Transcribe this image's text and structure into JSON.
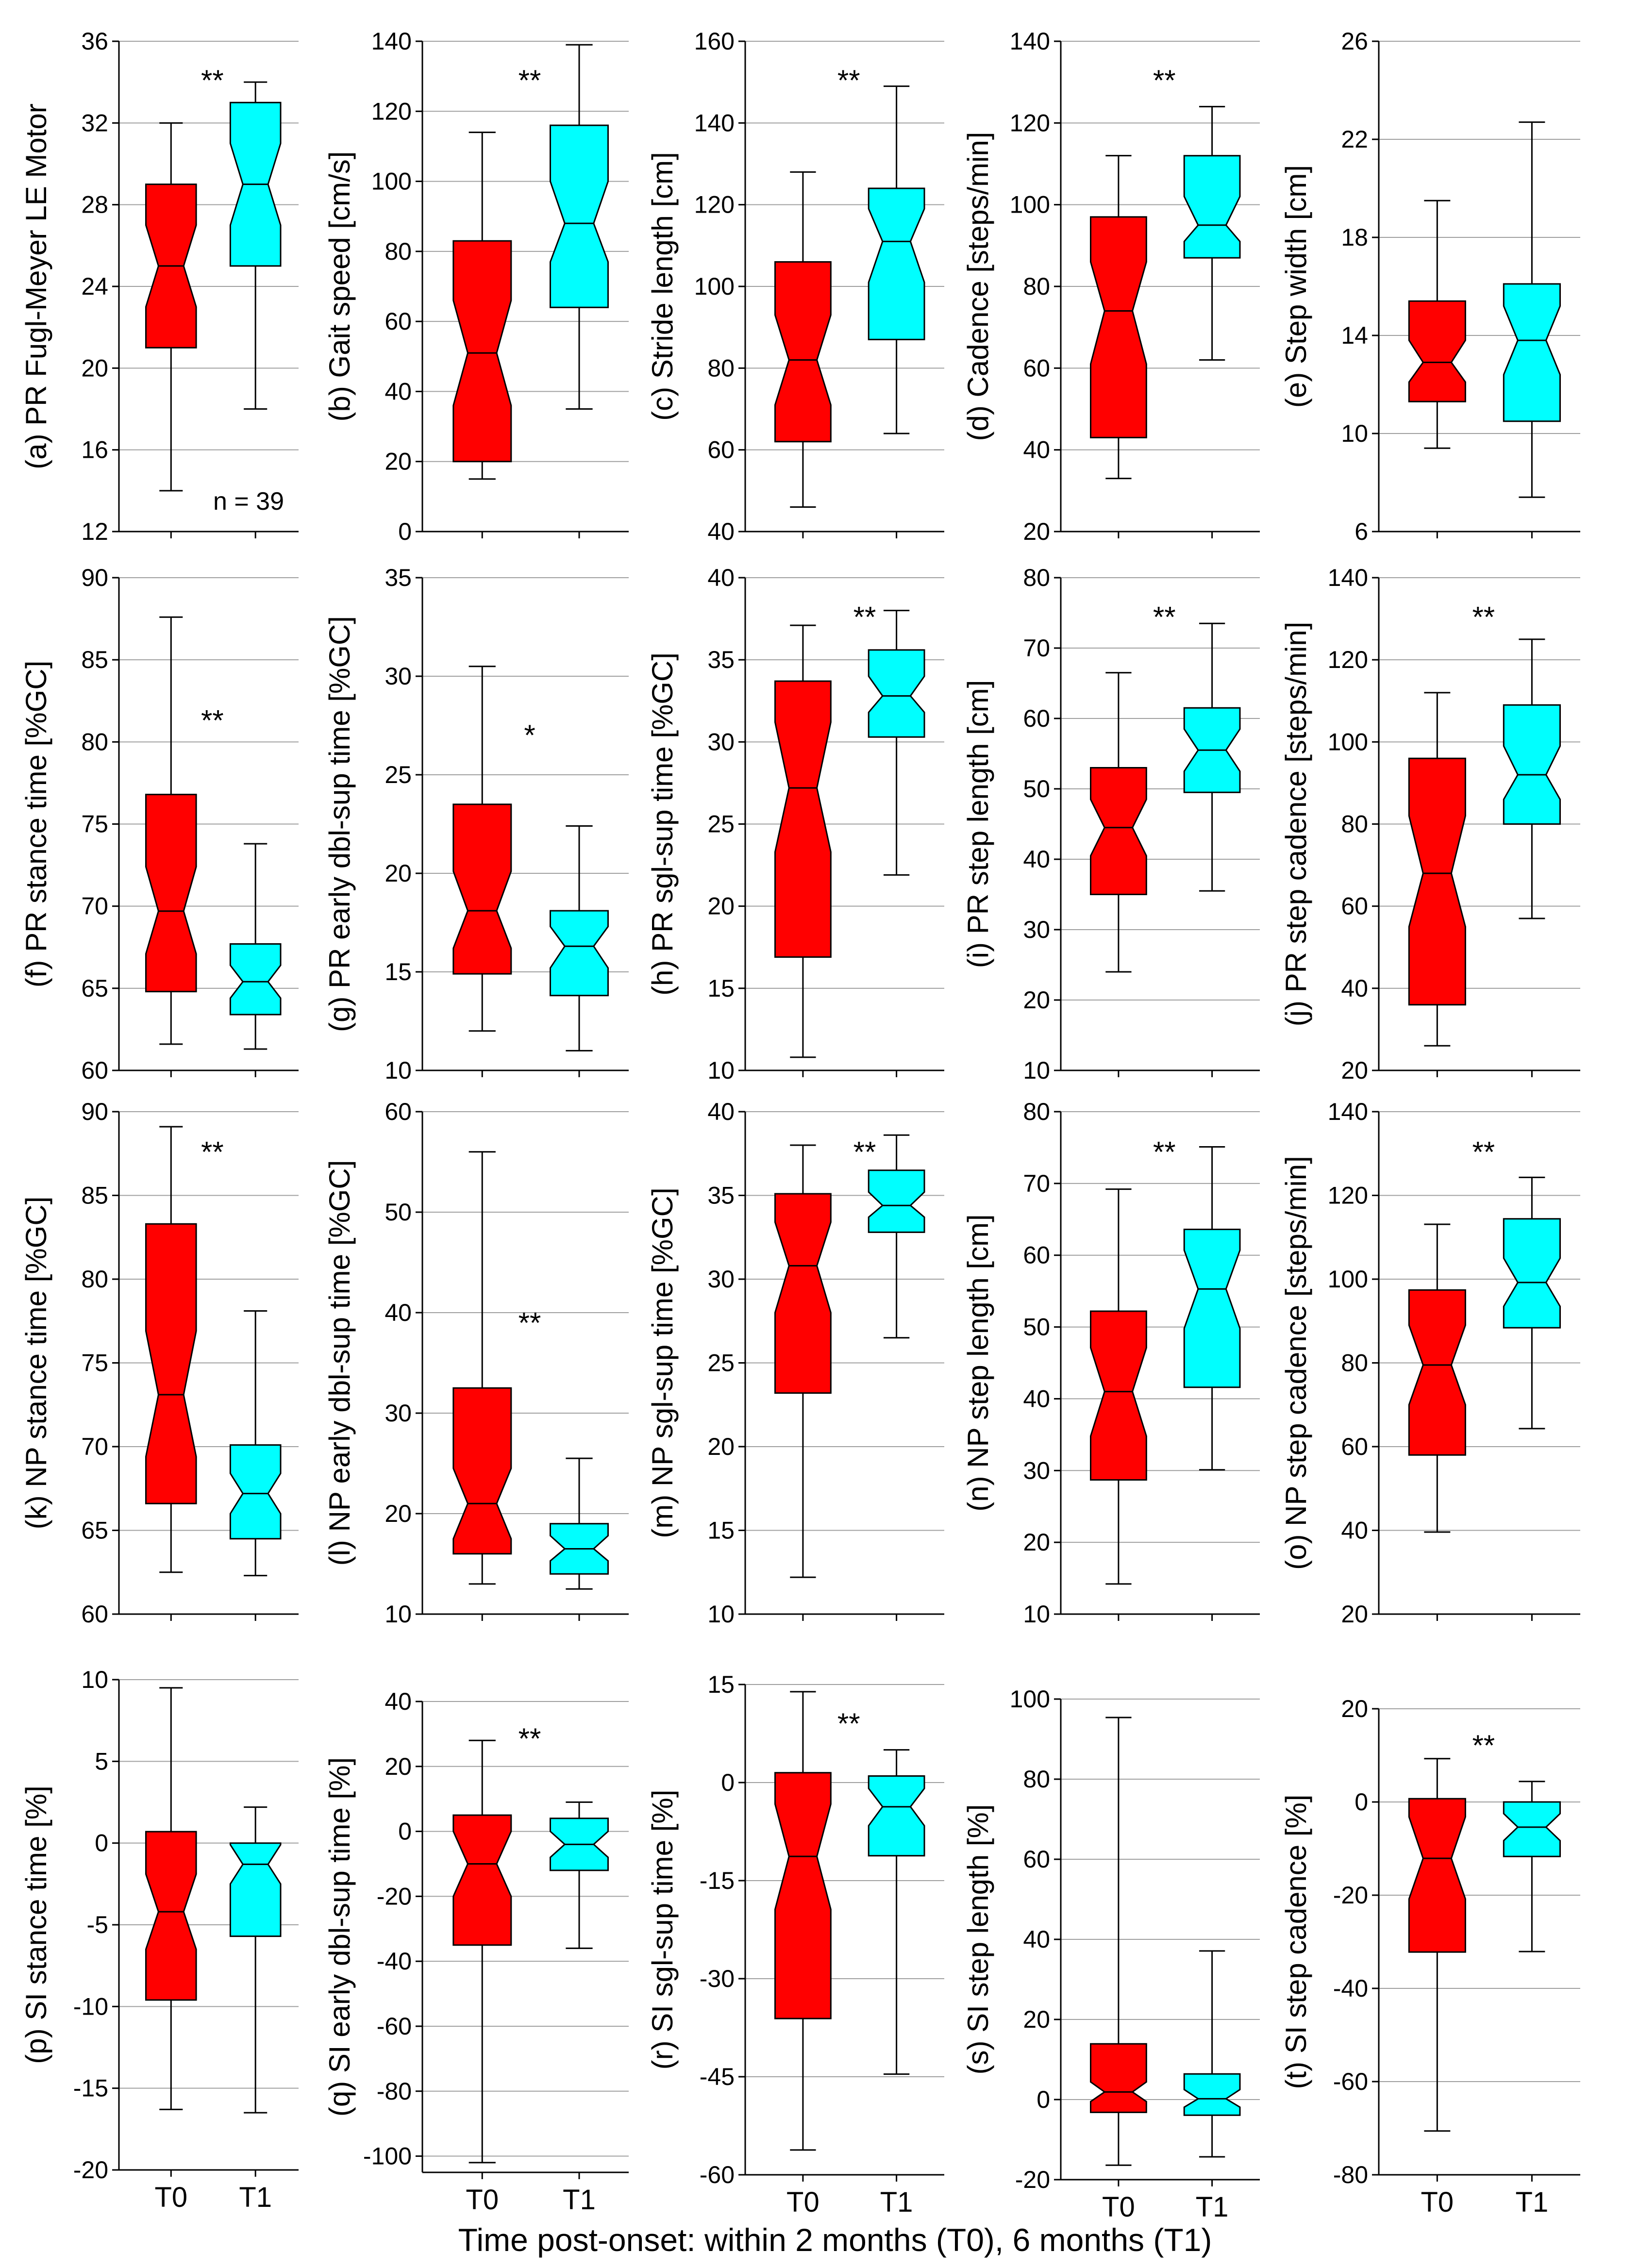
{
  "figure": {
    "xlabel": "Time post-onset: within 2 months (T0), 6 months (T1)",
    "groups": [
      "T0",
      "T1"
    ],
    "colors": {
      "T0": "#ff0000",
      "T1": "#00ffff",
      "grid": "#a0a0a0",
      "stroke": "#000000"
    }
  },
  "chart_data": [
    {
      "type": "box",
      "ylabel": "(a) PR Fugl-Meyer LE Motor",
      "ylim": [
        12,
        36
      ],
      "yticks": [
        12,
        16,
        20,
        24,
        28,
        32,
        36
      ],
      "significance": "**",
      "note": "n = 39",
      "boxes": [
        {
          "group": "T0",
          "whisker_low": 14,
          "q1": 21,
          "notch_low": 23,
          "median": 25,
          "notch_high": 27,
          "q3": 29,
          "whisker_high": 32
        },
        {
          "group": "T1",
          "whisker_low": 18,
          "q1": 25,
          "notch_low": 27,
          "median": 29,
          "notch_high": 31,
          "q3": 33,
          "whisker_high": 34
        }
      ]
    },
    {
      "type": "box",
      "ylabel": "(b) Gait speed [cm/s]",
      "ylim": [
        0,
        140
      ],
      "yticks": [
        0,
        20,
        40,
        60,
        80,
        100,
        120,
        140
      ],
      "significance": "**",
      "boxes": [
        {
          "group": "T0",
          "whisker_low": 15,
          "q1": 20,
          "notch_low": 36,
          "median": 51,
          "notch_high": 66,
          "q3": 83,
          "whisker_high": 114
        },
        {
          "group": "T1",
          "whisker_low": 35,
          "q1": 64,
          "notch_low": 77,
          "median": 88,
          "notch_high": 100,
          "q3": 116,
          "whisker_high": 139
        }
      ]
    },
    {
      "type": "box",
      "ylabel": "(c) Stride length [cm]",
      "ylim": [
        40,
        160
      ],
      "yticks": [
        40,
        60,
        80,
        100,
        120,
        140,
        160
      ],
      "significance": "**",
      "boxes": [
        {
          "group": "T0",
          "whisker_low": 46,
          "q1": 62,
          "notch_low": 71,
          "median": 82,
          "notch_high": 93,
          "q3": 106,
          "whisker_high": 128
        },
        {
          "group": "T1",
          "whisker_low": 64,
          "q1": 87,
          "notch_low": 101,
          "median": 111,
          "notch_high": 119,
          "q3": 124,
          "whisker_high": 149
        }
      ]
    },
    {
      "type": "box",
      "ylabel": "(d) Cadence [steps/min]",
      "ylim": [
        20,
        140
      ],
      "yticks": [
        20,
        40,
        60,
        80,
        100,
        120,
        140
      ],
      "significance": "**",
      "boxes": [
        {
          "group": "T0",
          "whisker_low": 33,
          "q1": 43,
          "notch_low": 61,
          "median": 74,
          "notch_high": 86,
          "q3": 97,
          "whisker_high": 112
        },
        {
          "group": "T1",
          "whisker_low": 62,
          "q1": 87,
          "notch_low": 91,
          "median": 95,
          "notch_high": 102,
          "q3": 112,
          "whisker_high": 124
        }
      ]
    },
    {
      "type": "box",
      "ylabel": "(e) Step width [cm]",
      "ylim": [
        6,
        26
      ],
      "yticks": [
        6,
        10,
        14,
        18,
        22,
        26
      ],
      "significance": "",
      "boxes": [
        {
          "group": "T0",
          "whisker_low": 9.4,
          "q1": 11.3,
          "notch_low": 12.1,
          "median": 12.9,
          "notch_high": 13.8,
          "q3": 15.4,
          "whisker_high": 19.5
        },
        {
          "group": "T1",
          "whisker_low": 7.4,
          "q1": 10.5,
          "notch_low": 12.4,
          "median": 13.8,
          "notch_high": 15.2,
          "q3": 16.1,
          "whisker_high": 22.7
        }
      ]
    },
    {
      "type": "box",
      "ylabel": "(f) PR stance time [%GC]",
      "ylim": [
        60,
        90
      ],
      "yticks": [
        60,
        65,
        70,
        75,
        80,
        85,
        90
      ],
      "significance": "**",
      "boxes": [
        {
          "group": "T0",
          "whisker_low": 61.6,
          "q1": 64.8,
          "notch_low": 67.1,
          "median": 69.7,
          "notch_high": 72.4,
          "q3": 76.8,
          "whisker_high": 87.6
        },
        {
          "group": "T1",
          "whisker_low": 61.3,
          "q1": 63.4,
          "notch_low": 64.4,
          "median": 65.4,
          "notch_high": 66.4,
          "q3": 67.7,
          "whisker_high": 73.8
        }
      ]
    },
    {
      "type": "box",
      "ylabel": "(g) PR early dbl-sup time [%GC]",
      "ylim": [
        10,
        35
      ],
      "yticks": [
        10,
        15,
        20,
        25,
        30,
        35
      ],
      "significance": "*",
      "boxes": [
        {
          "group": "T0",
          "whisker_low": 12,
          "q1": 14.9,
          "notch_low": 16.2,
          "median": 18.1,
          "notch_high": 20.1,
          "q3": 23.5,
          "whisker_high": 30.5
        },
        {
          "group": "T1",
          "whisker_low": 11,
          "q1": 13.8,
          "notch_low": 15.2,
          "median": 16.3,
          "notch_high": 17.3,
          "q3": 18.1,
          "whisker_high": 22.4
        }
      ]
    },
    {
      "type": "box",
      "ylabel": "(h) PR sgl-sup time [%GC]",
      "ylim": [
        10,
        40
      ],
      "yticks": [
        10,
        15,
        20,
        25,
        30,
        35,
        40
      ],
      "significance": "**",
      "boxes": [
        {
          "group": "T0",
          "whisker_low": 10.8,
          "q1": 16.9,
          "notch_low": 23.3,
          "median": 27.2,
          "notch_high": 31.2,
          "q3": 33.7,
          "whisker_high": 37.1
        },
        {
          "group": "T1",
          "whisker_low": 21.9,
          "q1": 30.3,
          "notch_low": 31.8,
          "median": 32.8,
          "notch_high": 34,
          "q3": 35.6,
          "whisker_high": 38
        }
      ]
    },
    {
      "type": "box",
      "ylabel": "(i) PR step length [cm]",
      "ylim": [
        10,
        80
      ],
      "yticks": [
        10,
        20,
        30,
        40,
        50,
        60,
        70,
        80
      ],
      "significance": "**",
      "boxes": [
        {
          "group": "T0",
          "whisker_low": 24,
          "q1": 35,
          "notch_low": 40.5,
          "median": 44.5,
          "notch_high": 48.5,
          "q3": 53,
          "whisker_high": 66.5
        },
        {
          "group": "T1",
          "whisker_low": 35.5,
          "q1": 49.5,
          "notch_low": 52.5,
          "median": 55.5,
          "notch_high": 58.5,
          "q3": 61.5,
          "whisker_high": 73.5
        }
      ]
    },
    {
      "type": "box",
      "ylabel": "(j) PR step cadence [steps/min]",
      "ylim": [
        20,
        140
      ],
      "yticks": [
        20,
        40,
        60,
        80,
        100,
        120,
        140
      ],
      "significance": "**",
      "boxes": [
        {
          "group": "T0",
          "whisker_low": 26,
          "q1": 36,
          "notch_low": 55,
          "median": 68,
          "notch_high": 82,
          "q3": 96,
          "whisker_high": 112
        },
        {
          "group": "T1",
          "whisker_low": 57,
          "q1": 80,
          "notch_low": 86,
          "median": 92,
          "notch_high": 99,
          "q3": 109,
          "whisker_high": 125
        }
      ]
    },
    {
      "type": "box",
      "ylabel": "(k) NP stance time [%GC]",
      "ylim": [
        60,
        90
      ],
      "yticks": [
        60,
        65,
        70,
        75,
        80,
        85,
        90
      ],
      "significance": "**",
      "boxes": [
        {
          "group": "T0",
          "whisker_low": 62.5,
          "q1": 66.6,
          "notch_low": 69.4,
          "median": 73.1,
          "notch_high": 76.9,
          "q3": 83.3,
          "whisker_high": 89.1
        },
        {
          "group": "T1",
          "whisker_low": 62.3,
          "q1": 64.5,
          "notch_low": 66,
          "median": 67.2,
          "notch_high": 68.4,
          "q3": 70.1,
          "whisker_high": 78.1
        }
      ]
    },
    {
      "type": "box",
      "ylabel": "(l) NP early dbl-sup time [%GC]",
      "ylim": [
        10,
        60
      ],
      "yticks": [
        10,
        20,
        30,
        40,
        50,
        60
      ],
      "significance": "**",
      "boxes": [
        {
          "group": "T0",
          "whisker_low": 13,
          "q1": 16,
          "notch_low": 17.5,
          "median": 21,
          "notch_high": 24.5,
          "q3": 32.5,
          "whisker_high": 56
        },
        {
          "group": "T1",
          "whisker_low": 12.5,
          "q1": 14,
          "notch_low": 15.3,
          "median": 16.5,
          "notch_high": 17.8,
          "q3": 19,
          "whisker_high": 25.5
        }
      ]
    },
    {
      "type": "box",
      "ylabel": "(m) NP sgl-sup time [%GC]",
      "ylim": [
        10,
        40
      ],
      "yticks": [
        10,
        15,
        20,
        25,
        30,
        35,
        40
      ],
      "significance": "**",
      "boxes": [
        {
          "group": "T0",
          "whisker_low": 12.2,
          "q1": 23.2,
          "notch_low": 28,
          "median": 30.8,
          "notch_high": 33.4,
          "q3": 35.1,
          "whisker_high": 38
        },
        {
          "group": "T1",
          "whisker_low": 26.5,
          "q1": 32.8,
          "notch_low": 33.7,
          "median": 34.4,
          "notch_high": 35.2,
          "q3": 36.5,
          "whisker_high": 38.6
        }
      ]
    },
    {
      "type": "box",
      "ylabel": "(n) NP step length [cm]",
      "ylim": [
        10,
        80
      ],
      "yticks": [
        10,
        20,
        30,
        40,
        50,
        60,
        70,
        80
      ],
      "significance": "**",
      "boxes": [
        {
          "group": "T0",
          "whisker_low": 14.2,
          "q1": 28.7,
          "notch_low": 34.8,
          "median": 41,
          "notch_high": 47.1,
          "q3": 52.2,
          "whisker_high": 69.2
        },
        {
          "group": "T1",
          "whisker_low": 30.1,
          "q1": 41.6,
          "notch_low": 49.8,
          "median": 55.3,
          "notch_high": 60.7,
          "q3": 63.6,
          "whisker_high": 75.1
        }
      ]
    },
    {
      "type": "box",
      "ylabel": "(o) NP step cadence [steps/min]",
      "ylim": [
        20,
        140
      ],
      "yticks": [
        20,
        40,
        60,
        80,
        100,
        120,
        140
      ],
      "significance": "**",
      "boxes": [
        {
          "group": "T0",
          "whisker_low": 39.6,
          "q1": 58,
          "notch_low": 70,
          "median": 79.5,
          "notch_high": 89,
          "q3": 97.4,
          "whisker_high": 113.1
        },
        {
          "group": "T1",
          "whisker_low": 64.3,
          "q1": 88.4,
          "notch_low": 93.5,
          "median": 99.2,
          "notch_high": 105,
          "q3": 114.4,
          "whisker_high": 124.3
        }
      ]
    },
    {
      "type": "box",
      "ylabel": "(p) SI stance time [%]",
      "ylim": [
        -20,
        10
      ],
      "yticks": [
        -20,
        -15,
        -10,
        -5,
        0,
        5,
        10
      ],
      "significance": "",
      "boxes": [
        {
          "group": "T0",
          "whisker_low": -16.3,
          "q1": -9.6,
          "notch_low": -6.5,
          "median": -4.2,
          "notch_high": -1.9,
          "q3": 0.7,
          "whisker_high": 9.5
        },
        {
          "group": "T1",
          "whisker_low": -16.5,
          "q1": -5.7,
          "notch_low": -2.5,
          "median": -1.3,
          "notch_high": -0.1,
          "q3": 0,
          "whisker_high": 2.2
        }
      ]
    },
    {
      "type": "box",
      "ylabel": "(q) SI early dbl-sup time [%]",
      "ylim": [
        -105,
        40
      ],
      "yticks": [
        -100,
        -80,
        -60,
        -40,
        -20,
        0,
        20,
        40
      ],
      "significance": "**",
      "boxes": [
        {
          "group": "T0",
          "whisker_low": -102,
          "q1": -35,
          "notch_low": -20,
          "median": -10,
          "notch_high": 0,
          "q3": 5,
          "whisker_high": 28
        },
        {
          "group": "T1",
          "whisker_low": -36,
          "q1": -12,
          "notch_low": -8,
          "median": -4,
          "notch_high": 0,
          "q3": 4,
          "whisker_high": 9
        }
      ]
    },
    {
      "type": "box",
      "ylabel": "(r) SI sgl-sup time [%]",
      "ylim": [
        -60,
        15
      ],
      "yticks": [
        -60,
        -45,
        -30,
        -15,
        0,
        15
      ],
      "significance": "**",
      "boxes": [
        {
          "group": "T0",
          "whisker_low": -56.2,
          "q1": -36.1,
          "notch_low": -19.4,
          "median": -11.3,
          "notch_high": -3.3,
          "q3": 1.5,
          "whisker_high": 13.9
        },
        {
          "group": "T1",
          "whisker_low": -44.6,
          "q1": -11.2,
          "notch_low": -6.6,
          "median": -3.7,
          "notch_high": -0.9,
          "q3": 1,
          "whisker_high": 5
        }
      ]
    },
    {
      "type": "box",
      "ylabel": "(s) SI step length [%]",
      "ylim": [
        -20,
        100
      ],
      "yticks": [
        -20,
        0,
        20,
        40,
        60,
        80,
        100
      ],
      "significance": "",
      "boxes": [
        {
          "group": "T0",
          "whisker_low": -16.4,
          "q1": -3.2,
          "notch_low": -0.5,
          "median": 1.9,
          "notch_high": 4.4,
          "q3": 13.9,
          "whisker_high": 95.4
        },
        {
          "group": "T1",
          "whisker_low": -14.3,
          "q1": -3.9,
          "notch_low": -1.9,
          "median": 0.2,
          "notch_high": 2.5,
          "q3": 6.4,
          "whisker_high": 37.1
        }
      ]
    },
    {
      "type": "box",
      "ylabel": "(t) SI step cadence [%]",
      "ylim": [
        -80,
        20
      ],
      "yticks": [
        -80,
        -60,
        -40,
        -20,
        0,
        20
      ],
      "significance": "**",
      "boxes": [
        {
          "group": "T0",
          "whisker_low": -70.6,
          "q1": -32.2,
          "notch_low": -20.8,
          "median": -12.1,
          "notch_high": -3.2,
          "q3": 0.7,
          "whisker_high": 9.3
        },
        {
          "group": "T1",
          "whisker_low": -32.1,
          "q1": -11.7,
          "notch_low": -8.3,
          "median": -5.4,
          "notch_high": -2.5,
          "q3": 0,
          "whisker_high": 4.4
        }
      ]
    }
  ]
}
